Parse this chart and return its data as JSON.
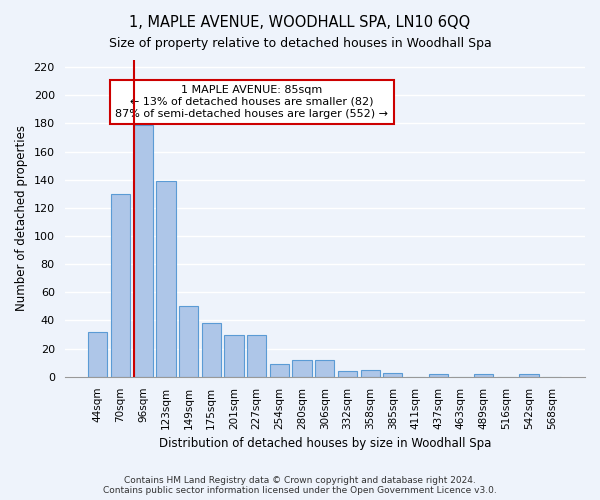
{
  "title1": "1, MAPLE AVENUE, WOODHALL SPA, LN10 6QQ",
  "title2": "Size of property relative to detached houses in Woodhall Spa",
  "xlabel": "Distribution of detached houses by size in Woodhall Spa",
  "ylabel": "Number of detached properties",
  "categories": [
    "44sqm",
    "70sqm",
    "96sqm",
    "123sqm",
    "149sqm",
    "175sqm",
    "201sqm",
    "227sqm",
    "254sqm",
    "280sqm",
    "306sqm",
    "332sqm",
    "358sqm",
    "385sqm",
    "411sqm",
    "437sqm",
    "463sqm",
    "489sqm",
    "516sqm",
    "542sqm",
    "568sqm"
  ],
  "values": [
    32,
    130,
    179,
    139,
    50,
    38,
    30,
    30,
    9,
    12,
    12,
    4,
    5,
    3,
    0,
    2,
    0,
    2,
    0,
    2,
    0
  ],
  "bar_color": "#aec6e8",
  "bar_edge_color": "#5b9bd5",
  "background_color": "#eef3fb",
  "grid_color": "#ffffff",
  "annotation_box_color": "#ffffff",
  "annotation_box_edge": "#cc0000",
  "vline_color": "#cc0000",
  "vline_x": 1.575,
  "annotation_text": "1 MAPLE AVENUE: 85sqm\n← 13% of detached houses are smaller (82)\n87% of semi-detached houses are larger (552) →",
  "footer": "Contains HM Land Registry data © Crown copyright and database right 2024.\nContains public sector information licensed under the Open Government Licence v3.0.",
  "ylim": [
    0,
    225
  ],
  "yticks": [
    0,
    20,
    40,
    60,
    80,
    100,
    120,
    140,
    160,
    180,
    200,
    220
  ]
}
